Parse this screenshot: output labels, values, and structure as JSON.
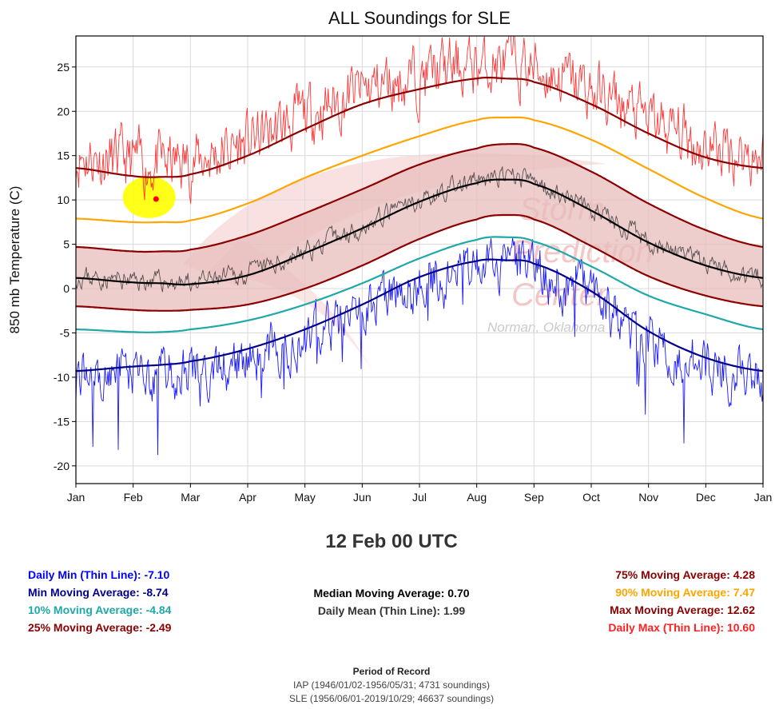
{
  "chart_data": {
    "type": "line",
    "title": "ALL Soundings for SLE",
    "ylabel": "850 mb Temperature (C)",
    "xlabel": "",
    "ylim": [
      -22,
      28.5
    ],
    "yticks": [
      25,
      20,
      15,
      10,
      5,
      0,
      -5,
      -10,
      -15,
      -20
    ],
    "xticks": [
      "Jan",
      "Feb",
      "Mar",
      "Apr",
      "May",
      "Jun",
      "Jul",
      "Aug",
      "Sep",
      "Oct",
      "Nov",
      "Dec",
      "Jan"
    ],
    "grid": true,
    "watermark": [
      "Storm",
      "Prediction",
      "Center",
      "Norman, Oklahoma"
    ],
    "colors": {
      "daily_max": "#ff2020",
      "max_avg": "#8b0000",
      "p90": "#ffa500",
      "p75": "#8b0000",
      "median": "#000000",
      "daily_mean": "#333333",
      "p25": "#8b0000",
      "p10": "#20a8a8",
      "min_avg": "#00008b",
      "daily_min": "#0000ff",
      "band": "#e8bcbc",
      "highlight": "#ffff00",
      "marker": "#ff0000"
    },
    "smooth_series": [
      {
        "name": "Max Moving Average",
        "key": "max_avg",
        "x": [
          0,
          1,
          1.5,
          2,
          3,
          4,
          5,
          6,
          7,
          7.5,
          8,
          9,
          10,
          11,
          12
        ],
        "y": [
          13.6,
          12.7,
          12.6,
          12.9,
          15.0,
          18.0,
          20.8,
          22.5,
          23.7,
          23.7,
          23.3,
          20.8,
          17.5,
          14.8,
          13.6
        ]
      },
      {
        "name": "90% Moving Average",
        "key": "p90",
        "x": [
          0,
          1,
          1.5,
          2,
          3,
          4,
          5,
          6,
          7,
          7.5,
          8,
          9,
          10,
          11,
          12
        ],
        "y": [
          7.9,
          7.5,
          7.5,
          7.7,
          9.6,
          12.5,
          15.0,
          17.2,
          19.0,
          19.3,
          19.0,
          16.8,
          13.5,
          10.2,
          7.9
        ]
      },
      {
        "name": "75% Moving Average",
        "key": "p75",
        "x": [
          0,
          1,
          1.5,
          2,
          3,
          4,
          5,
          6,
          7,
          7.5,
          8,
          9,
          10,
          11,
          12
        ],
        "y": [
          4.7,
          4.2,
          4.2,
          4.4,
          6.0,
          8.5,
          11.2,
          14.0,
          15.8,
          16.3,
          15.9,
          13.2,
          9.6,
          6.6,
          4.7
        ]
      },
      {
        "name": "Median Moving Average",
        "key": "median",
        "x": [
          0,
          1,
          1.5,
          2,
          3,
          4,
          5,
          6,
          7,
          7.5,
          8,
          9,
          10,
          11,
          12
        ],
        "y": [
          1.2,
          0.7,
          0.6,
          0.5,
          1.5,
          4.0,
          6.8,
          9.8,
          11.9,
          12.3,
          11.8,
          8.8,
          5.2,
          2.6,
          1.2
        ]
      },
      {
        "name": "25% Moving Average",
        "key": "p25",
        "x": [
          0,
          1,
          1.5,
          2,
          3,
          4,
          5,
          6,
          7,
          7.5,
          8,
          9,
          10,
          11,
          12
        ],
        "y": [
          -2.0,
          -2.4,
          -2.5,
          -2.4,
          -1.8,
          0.0,
          2.6,
          5.6,
          7.8,
          8.3,
          7.8,
          4.8,
          1.4,
          -0.8,
          -2.0
        ]
      },
      {
        "name": "10% Moving Average",
        "key": "p10",
        "x": [
          0,
          1,
          1.5,
          2,
          3,
          4,
          5,
          6,
          7,
          7.5,
          8,
          9,
          10,
          11,
          12
        ],
        "y": [
          -4.6,
          -4.9,
          -4.9,
          -4.6,
          -3.6,
          -1.8,
          0.6,
          3.4,
          5.5,
          5.8,
          5.3,
          2.5,
          -0.8,
          -2.9,
          -4.6
        ]
      },
      {
        "name": "Min Moving Average",
        "key": "min_avg",
        "x": [
          0,
          1,
          1.5,
          2,
          3,
          4,
          5,
          6,
          7,
          7.5,
          8,
          9,
          10,
          11,
          12
        ],
        "y": [
          -9.3,
          -8.8,
          -8.6,
          -8.2,
          -6.8,
          -4.6,
          -1.8,
          1.3,
          3.1,
          3.2,
          2.8,
          -0.3,
          -4.8,
          -7.8,
          -9.3
        ]
      }
    ],
    "noisy_series": [
      {
        "name": "Daily Max (Thin Line)",
        "key": "daily_max",
        "offset": 1.5,
        "amp": 2.8,
        "seed": 11
      },
      {
        "name": "Daily Mean (Thin Line)",
        "key": "daily_mean",
        "offset": 0.2,
        "amp": 0.9,
        "seed": 23
      },
      {
        "name": "Daily Min (Thin Line)",
        "key": "daily_min",
        "offset": -0.9,
        "amp": 2.4,
        "seed": 37
      }
    ],
    "marker": {
      "x": 1.4,
      "y": 10.1
    }
  },
  "legend": {
    "hover_time": "12 Feb 00 UTC",
    "daily_min": {
      "label": "Daily Min (Thin Line):",
      "value": "-7.10"
    },
    "min_avg": {
      "label": "Min Moving Average:",
      "value": "-8.74"
    },
    "p10": {
      "label": "10% Moving Average:",
      "value": "-4.84"
    },
    "p25": {
      "label": "25% Moving Average:",
      "value": "-2.49"
    },
    "median": {
      "label": "Median Moving Average:",
      "value": "0.70"
    },
    "daily_mean": {
      "label": "Daily Mean (Thin Line):",
      "value": "1.99"
    },
    "p75": {
      "label": "75% Moving Average:",
      "value": "4.28"
    },
    "p90": {
      "label": "90% Moving Average:",
      "value": "7.47"
    },
    "max_avg": {
      "label": "Max Moving Average:",
      "value": "12.62"
    },
    "daily_max": {
      "label": "Daily Max (Thin Line):",
      "value": "10.60"
    }
  },
  "footer": {
    "title": "Period of Record",
    "line1": "IAP (1946/01/02-1956/05/31; 4731 soundings)",
    "line2": "SLE (1956/06/01-2019/10/29; 46637 soundings)"
  }
}
